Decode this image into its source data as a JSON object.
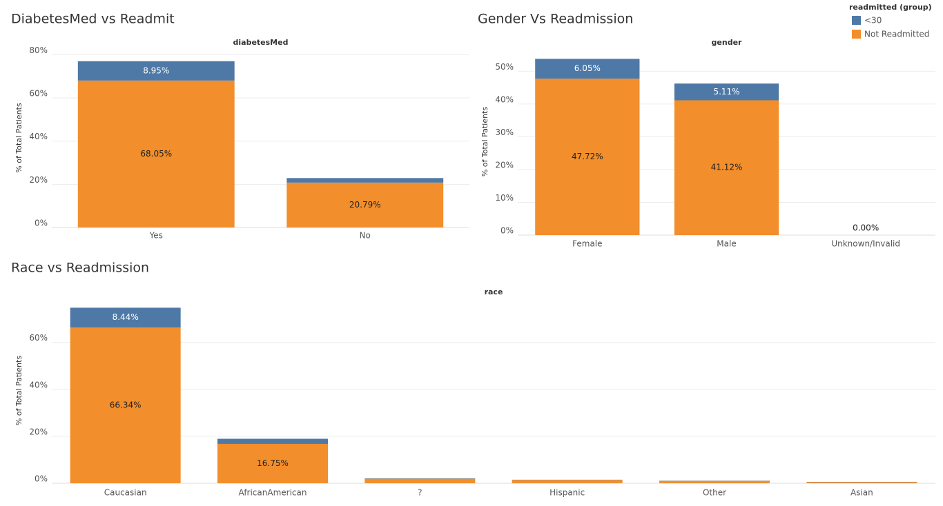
{
  "legend": {
    "title": "readmitted (group)"
  },
  "chart_data": [
    {
      "type": "bar",
      "stacked": true,
      "title": "DiabetesMed vs Readmit",
      "header": "diabetesMed",
      "y_label": "% of Total Patients",
      "categories": [
        "Yes",
        "No"
      ],
      "series": [
        {
          "name": "<30",
          "color": "#4e79a7",
          "values": [
            8.95,
            2.1
          ],
          "value_labels": [
            "8.95%",
            null
          ]
        },
        {
          "name": "Not Readmitted",
          "color": "#f28e2b",
          "values": [
            68.05,
            20.79
          ],
          "value_labels": [
            "68.05%",
            "20.79%"
          ]
        }
      ],
      "ylim": [
        0,
        83
      ],
      "yticks": [
        {
          "value": 0,
          "label": "0%"
        },
        {
          "value": 20,
          "label": "20%"
        },
        {
          "value": 40,
          "label": "40%"
        },
        {
          "value": 60,
          "label": "60%"
        },
        {
          "value": 80,
          "label": "80%"
        }
      ],
      "grid": true
    },
    {
      "type": "bar",
      "stacked": true,
      "title": "Gender Vs Readmission",
      "header": "gender",
      "y_label": "% of Total Patients",
      "categories": [
        "Female",
        "Male",
        "Unknown/Invalid"
      ],
      "series": [
        {
          "name": "<30",
          "color": "#4e79a7",
          "values": [
            6.05,
            5.11,
            0
          ],
          "value_labels": [
            "6.05%",
            "5.11%",
            null
          ]
        },
        {
          "name": "Not Readmitted",
          "color": "#f28e2b",
          "values": [
            47.72,
            41.12,
            0.0
          ],
          "value_labels": [
            "47.72%",
            "41.12%",
            "0.00%"
          ]
        }
      ],
      "ylim": [
        0,
        57
      ],
      "yticks": [
        {
          "value": 0,
          "label": "0%"
        },
        {
          "value": 10,
          "label": "10%"
        },
        {
          "value": 20,
          "label": "20%"
        },
        {
          "value": 30,
          "label": "30%"
        },
        {
          "value": 40,
          "label": "40%"
        },
        {
          "value": 50,
          "label": "50%"
        }
      ],
      "grid": true
    },
    {
      "type": "bar",
      "stacked": true,
      "title": "Race vs Readmission",
      "header": "race",
      "y_label": "% of Total Patients",
      "categories": [
        "Caucasian",
        "AfricanAmerican",
        "?",
        "Hispanic",
        "Other",
        "Asian"
      ],
      "series": [
        {
          "name": "<30",
          "color": "#4e79a7",
          "values": [
            8.44,
            2.2,
            0.2,
            0.1,
            0.1,
            0.1
          ],
          "value_labels": [
            "8.44%",
            null,
            null,
            null,
            null,
            null
          ]
        },
        {
          "name": "Not Readmitted",
          "color": "#f28e2b",
          "values": [
            66.34,
            16.75,
            1.9,
            1.4,
            1.0,
            0.5
          ],
          "value_labels": [
            "66.34%",
            "16.75%",
            null,
            null,
            null,
            null
          ]
        }
      ],
      "ylim": [
        0,
        79
      ],
      "yticks": [
        {
          "value": 0,
          "label": "0%"
        },
        {
          "value": 20,
          "label": "20%"
        },
        {
          "value": 40,
          "label": "40%"
        },
        {
          "value": 60,
          "label": "60%"
        }
      ],
      "grid": true
    }
  ]
}
